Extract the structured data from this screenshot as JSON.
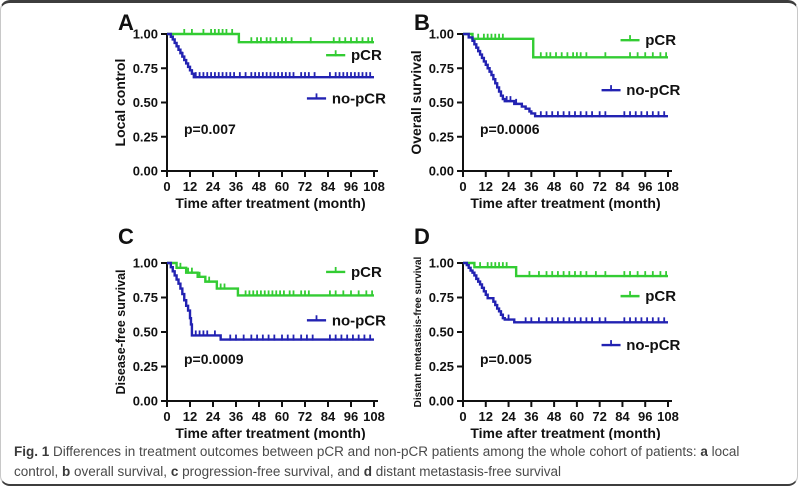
{
  "figure": {
    "caption_segments": [
      {
        "text": "Fig. 1",
        "bold": true
      },
      {
        "text": " Differences in treatment outcomes between pCR and non-pCR patients among the whole cohort of patients: ",
        "bold": false
      },
      {
        "text": "a",
        "bold": true
      },
      {
        "text": " local control, ",
        "bold": false
      },
      {
        "text": "b",
        "bold": true
      },
      {
        "text": " overall survival, ",
        "bold": false
      },
      {
        "text": "c",
        "bold": true
      },
      {
        "text": " progression-free survival, and ",
        "bold": false
      },
      {
        "text": "d",
        "bold": true
      },
      {
        "text": " distant metastasis-free survival",
        "bold": false
      }
    ],
    "colors": {
      "pcr_green": "#33cc33",
      "no_pcr_blue": "#2222b2",
      "axis_black": "#111111"
    }
  },
  "chart_data": [
    {
      "type": "line",
      "panel": "A",
      "ylabel": "Local control",
      "xlabel": "Time after treatment (month)",
      "p_value_label": "p=0.007",
      "xlim": [
        0,
        108
      ],
      "ylim": [
        0.0,
        1.0
      ],
      "xticks": [
        0,
        12,
        24,
        36,
        48,
        60,
        72,
        84,
        96,
        108
      ],
      "ytick_labels": [
        "0.00",
        "0.25",
        "0.50",
        "0.75",
        "1.00"
      ],
      "series": [
        {
          "name": "pCR",
          "color_key": "pcr_green",
          "steps": [
            [
              0,
              1.0
            ],
            [
              37.5,
              0.94
            ]
          ],
          "censors": [
            9,
            13,
            19,
            23,
            25,
            27,
            29,
            31,
            34,
            44,
            47,
            49,
            52,
            54,
            57,
            60,
            62,
            65,
            75,
            87,
            90,
            93,
            96,
            99,
            102,
            105,
            107
          ],
          "legend_s": 0.845
        },
        {
          "name": "no-pCR",
          "color_key": "no_pcr_blue",
          "steps": [
            [
              0,
              1.0
            ],
            [
              2,
              0.98
            ],
            [
              3,
              0.96
            ],
            [
              4,
              0.935
            ],
            [
              5,
              0.91
            ],
            [
              6,
              0.885
            ],
            [
              7,
              0.86
            ],
            [
              8,
              0.835
            ],
            [
              9,
              0.81
            ],
            [
              10,
              0.785
            ],
            [
              11,
              0.76
            ],
            [
              12,
              0.735
            ],
            [
              13,
              0.71
            ],
            [
              14,
              0.685
            ]
          ],
          "censors": [
            8,
            15,
            17,
            19,
            21,
            23,
            25,
            27,
            29,
            31,
            33,
            35,
            38,
            41,
            44,
            46,
            48,
            50,
            52,
            54,
            56,
            58,
            60,
            62,
            64,
            66,
            70,
            72,
            74,
            77,
            85,
            88,
            90,
            92,
            94,
            96,
            98,
            100,
            102,
            104,
            106
          ],
          "legend_s": 0.53
        }
      ]
    },
    {
      "type": "line",
      "panel": "B",
      "ylabel": "Overall survival",
      "xlabel": "Time after treatment (month)",
      "p_value_label": "p=0.0006",
      "xlim": [
        0,
        108
      ],
      "ylim": [
        0.0,
        1.0
      ],
      "xticks": [
        0,
        12,
        24,
        36,
        48,
        60,
        72,
        84,
        96,
        108
      ],
      "ytick_labels": [
        "0.00",
        "0.25",
        "0.50",
        "0.75",
        "1.00"
      ],
      "series": [
        {
          "name": "pCR",
          "color_key": "pcr_green",
          "steps": [
            [
              0,
              1.0
            ],
            [
              5,
              0.965
            ],
            [
              37,
              0.83
            ]
          ],
          "censors": [
            8,
            11,
            13,
            15,
            17,
            19,
            21,
            41,
            44,
            46,
            49,
            52,
            55,
            58,
            60,
            62,
            65,
            75,
            88,
            92,
            96,
            100,
            104,
            107
          ],
          "legend_s": 0.955
        },
        {
          "name": "no-pCR",
          "color_key": "no_pcr_blue",
          "steps": [
            [
              0,
              1.0
            ],
            [
              3,
              0.975
            ],
            [
              5,
              0.95
            ],
            [
              6,
              0.925
            ],
            [
              7,
              0.9
            ],
            [
              8,
              0.875
            ],
            [
              9,
              0.85
            ],
            [
              10,
              0.825
            ],
            [
              11,
              0.8
            ],
            [
              12,
              0.775
            ],
            [
              13,
              0.75
            ],
            [
              14,
              0.725
            ],
            [
              15,
              0.7
            ],
            [
              16,
              0.67
            ],
            [
              17,
              0.64
            ],
            [
              18,
              0.61
            ],
            [
              19,
              0.58
            ],
            [
              20,
              0.55
            ],
            [
              21,
              0.525
            ],
            [
              22,
              0.51
            ],
            [
              27,
              0.49
            ],
            [
              31,
              0.47
            ],
            [
              33,
              0.455
            ],
            [
              35,
              0.435
            ],
            [
              36,
              0.42
            ],
            [
              38,
              0.4
            ]
          ],
          "censors": [
            23,
            25,
            28,
            41,
            44,
            47,
            50,
            53,
            56,
            59,
            62,
            65,
            68,
            72,
            75,
            85,
            88,
            91,
            94,
            97,
            100,
            103,
            106
          ],
          "legend_s": 0.59
        }
      ]
    },
    {
      "type": "line",
      "panel": "C",
      "ylabel": "Disease-free survival",
      "xlabel": "Time after treatment (month)",
      "p_value_label": "p=0.0009",
      "xlim": [
        0,
        108
      ],
      "ylim": [
        0.0,
        1.0
      ],
      "xticks": [
        0,
        12,
        24,
        36,
        48,
        60,
        72,
        84,
        96,
        108
      ],
      "ytick_labels": [
        "0.00",
        "0.25",
        "0.50",
        "0.75",
        "1.00"
      ],
      "series": [
        {
          "name": "pCR",
          "color_key": "pcr_green",
          "steps": [
            [
              0,
              1.0
            ],
            [
              5,
              0.965
            ],
            [
              10,
              0.93
            ],
            [
              16,
              0.9
            ],
            [
              20,
              0.865
            ],
            [
              26,
              0.815
            ],
            [
              37,
              0.765
            ]
          ],
          "censors": [
            7,
            11,
            13,
            17,
            22,
            28,
            30,
            41,
            43,
            45,
            47,
            49,
            51,
            53,
            55,
            57,
            59,
            61,
            64,
            66,
            70,
            72,
            74,
            85,
            88,
            92,
            96,
            100,
            104,
            107
          ],
          "legend_s": 0.935
        },
        {
          "name": "no-pCR",
          "color_key": "no_pcr_blue",
          "steps": [
            [
              0,
              1.0
            ],
            [
              2,
              0.97
            ],
            [
              3,
              0.94
            ],
            [
              4,
              0.91
            ],
            [
              5,
              0.88
            ],
            [
              6,
              0.85
            ],
            [
              7,
              0.815
            ],
            [
              8,
              0.775
            ],
            [
              9,
              0.73
            ],
            [
              10,
              0.69
            ],
            [
              11,
              0.655
            ],
            [
              12,
              0.6
            ],
            [
              12.5,
              0.555
            ],
            [
              13,
              0.475
            ],
            [
              28,
              0.445
            ]
          ],
          "censors": [
            10,
            15,
            17,
            19,
            21,
            25,
            33,
            36,
            40,
            44,
            47,
            50,
            53,
            56,
            60,
            63,
            66,
            70,
            73,
            76,
            85,
            88,
            91,
            94,
            97,
            100,
            103,
            106
          ],
          "legend_s": 0.585
        }
      ]
    },
    {
      "type": "line",
      "panel": "D",
      "ylabel": "Distant metastasis-free survival",
      "xlabel": "Time after treatment (month)",
      "p_value_label": "p=0.005",
      "xlim": [
        0,
        108
      ],
      "ylim": [
        0.0,
        1.0
      ],
      "xticks": [
        0,
        12,
        24,
        36,
        48,
        60,
        72,
        84,
        96,
        108
      ],
      "ytick_labels": [
        "0.00",
        "0.25",
        "0.50",
        "0.75",
        "1.00"
      ],
      "series": [
        {
          "name": "pCR",
          "color_key": "pcr_green",
          "steps": [
            [
              0,
              1.0
            ],
            [
              6,
              0.97
            ],
            [
              28,
              0.905
            ]
          ],
          "censors": [
            9,
            13,
            15,
            17,
            19,
            21,
            23,
            35,
            40,
            44,
            47,
            50,
            53,
            56,
            59,
            62,
            65,
            70,
            75,
            85,
            88,
            92,
            96,
            100,
            104,
            107
          ],
          "legend_s": 0.76
        },
        {
          "name": "no-pCR",
          "color_key": "no_pcr_blue",
          "steps": [
            [
              0,
              1.0
            ],
            [
              2,
              0.985
            ],
            [
              3,
              0.965
            ],
            [
              4,
              0.945
            ],
            [
              5,
              0.93
            ],
            [
              6,
              0.91
            ],
            [
              7,
              0.885
            ],
            [
              8,
              0.865
            ],
            [
              9,
              0.845
            ],
            [
              10,
              0.82
            ],
            [
              11,
              0.795
            ],
            [
              12,
              0.77
            ],
            [
              13,
              0.745
            ],
            [
              16,
              0.72
            ],
            [
              17,
              0.695
            ],
            [
              18,
              0.67
            ],
            [
              19,
              0.65
            ],
            [
              20,
              0.625
            ],
            [
              21,
              0.6
            ],
            [
              22,
              0.59
            ],
            [
              27,
              0.57
            ]
          ],
          "censors": [
            24,
            33,
            36,
            40,
            44,
            47,
            50,
            53,
            56,
            59,
            62,
            65,
            68,
            72,
            75,
            85,
            88,
            91,
            94,
            97,
            100,
            103,
            106
          ],
          "legend_s": 0.405
        }
      ]
    }
  ]
}
